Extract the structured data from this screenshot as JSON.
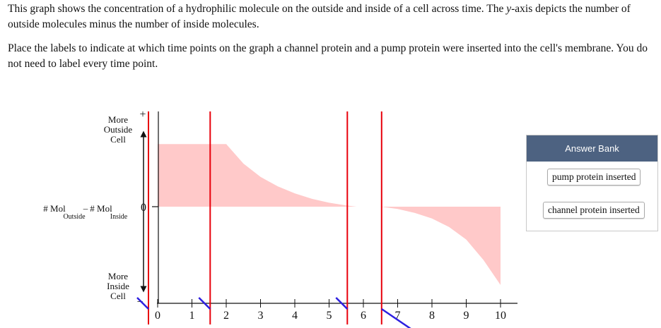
{
  "question": {
    "paragraph1_pre": "This graph shows the concentration of a hydrophilic molecule on the outside and inside of a cell across time. The ",
    "paragraph1_var": "y",
    "paragraph1_post": "-axis depicts the number of outside molecules minus the number of inside molecules.",
    "paragraph2": "Place the labels to indicate at which time points on the graph a channel protein and a pump protein were inserted into the cell's membrane. You do not need to label every time point."
  },
  "answer_bank": {
    "title": "Answer Bank",
    "items": [
      "pump protein inserted",
      "channel protein inserted"
    ]
  },
  "colors": {
    "fill": "#ffc9c9",
    "drop_line": "#e8000b",
    "pointer": "#2d1fe0",
    "header": "#4d6281"
  },
  "chart_data": {
    "type": "area",
    "x": [
      0,
      1.8,
      2,
      2.5,
      3,
      3.5,
      4,
      4.5,
      5,
      5.5,
      5.8,
      6,
      6.5,
      7,
      7.5,
      8,
      8.5,
      9,
      9.5,
      10
    ],
    "y": [
      0.8,
      0.8,
      0.8,
      0.55,
      0.38,
      0.26,
      0.17,
      0.1,
      0.05,
      0.015,
      0,
      0,
      0,
      -0.03,
      -0.08,
      -0.15,
      -0.26,
      -0.42,
      -0.68,
      -1.0
    ],
    "xlim": [
      0,
      10
    ],
    "ylim": [
      -1,
      1
    ],
    "x_ticks": [
      "0",
      "1",
      "2",
      "3",
      "4",
      "5",
      "6",
      "7",
      "8",
      "9",
      "10"
    ],
    "y_top_sign": "+",
    "y_zero": "0",
    "y_bottom_sign": "−",
    "y_top_label": [
      "More",
      "Outside",
      "Cell"
    ],
    "y_bottom_label": [
      "More",
      "Inside",
      "Cell"
    ],
    "y_axis_label": {
      "left_main": "# Mol",
      "left_sub": "Outside",
      "operator": "–",
      "right_main": "# Mol",
      "right_sub": "Inside"
    },
    "drop_zones": [
      0,
      1.8,
      5.8,
      6.8
    ]
  }
}
